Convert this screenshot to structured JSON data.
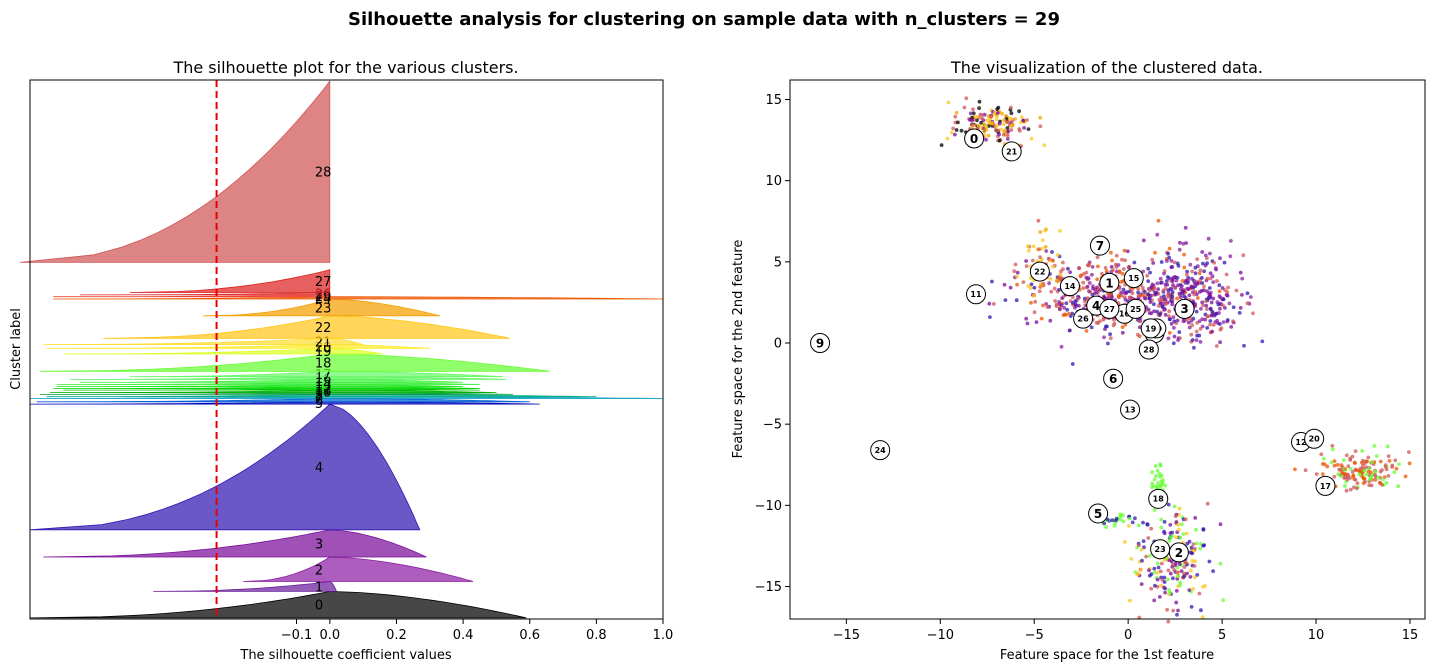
{
  "figure": {
    "suptitle": "Silhouette analysis for clustering on sample data with n_clusters = 29"
  },
  "chart_data": [
    {
      "type": "area",
      "title": "The silhouette plot for the various clusters.",
      "xlabel": "The silhouette coefficient values",
      "ylabel": "Cluster label",
      "xlim": [
        -0.9,
        1.0
      ],
      "xticks": [
        "−0.1",
        "0.0",
        "0.2",
        "0.4",
        "0.6",
        "0.8",
        "1.0"
      ],
      "xtick_values": [
        -0.1,
        0.0,
        0.2,
        0.4,
        0.6,
        0.8,
        1.0
      ],
      "average_silhouette": -0.34,
      "clusters": [
        {
          "label": "0",
          "y_range": [
            0.5,
            12.3
          ],
          "max": 0.59,
          "min": -0.9,
          "color": "#000000"
        },
        {
          "label": "1",
          "y_range": [
            12.3,
            16.7
          ],
          "max": 0.02,
          "min": -0.53,
          "color": "#6a1d9a"
        },
        {
          "label": "2",
          "y_range": [
            16.7,
            27.6
          ],
          "max": 0.43,
          "min": -0.26,
          "color": "#8e1fa3"
        },
        {
          "label": "3",
          "y_range": [
            27.6,
            39.7
          ],
          "max": 0.29,
          "min": -0.86,
          "color": "#7b0e9a"
        },
        {
          "label": "4",
          "y_range": [
            39.7,
            95.7
          ],
          "max": 0.27,
          "min": -0.9,
          "color": "#3018b0"
        },
        {
          "label": "5",
          "y_range": [
            95.7,
            96.7
          ],
          "max": 0.63,
          "min": -0.9,
          "color": "#0000bb"
        },
        {
          "label": "6",
          "y_range": [
            96.7,
            98.2
          ],
          "max": 0.6,
          "min": -0.88,
          "color": "#005fd5"
        },
        {
          "label": "7",
          "y_range": [
            98.2,
            99.0
          ],
          "max": 1.0,
          "min": -0.9,
          "color": "#009fbf"
        },
        {
          "label": "8",
          "y_range": [
            99.0,
            100.0
          ],
          "max": 0.8,
          "min": -0.85,
          "color": "#00aa88"
        },
        {
          "label": "9",
          "y_range": [
            100.0,
            100.8
          ],
          "max": 0.55,
          "min": -0.87,
          "color": "#009b3d"
        },
        {
          "label": "10",
          "y_range": [
            100.8,
            101.9
          ],
          "max": 0.5,
          "min": -0.84,
          "color": "#00b000"
        },
        {
          "label": "11",
          "y_range": [
            101.9,
            102.6
          ],
          "max": 0.45,
          "min": -0.8,
          "color": "#00c800"
        },
        {
          "label": "12",
          "y_range": [
            102.6,
            103.5
          ],
          "max": 0.45,
          "min": -0.83,
          "color": "#00d800"
        },
        {
          "label": "13",
          "y_range": [
            103.5,
            104.4
          ],
          "max": 0.4,
          "min": -0.82,
          "color": "#22e622"
        },
        {
          "label": "14",
          "y_range": [
            104.4,
            105.4
          ],
          "max": 0.45,
          "min": -0.82,
          "color": "#33ee33"
        },
        {
          "label": "15",
          "y_range": [
            105.4,
            106.7
          ],
          "max": 0.4,
          "min": -0.75,
          "color": "#44f244"
        },
        {
          "label": "16",
          "y_range": [
            106.7,
            107.9
          ],
          "max": 0.53,
          "min": -0.78,
          "color": "#55f455"
        },
        {
          "label": "17",
          "y_range": [
            107.9,
            110.3
          ],
          "max": 0.52,
          "min": -0.6,
          "color": "#66f866"
        },
        {
          "label": "18",
          "y_range": [
            110.3,
            118.0
          ],
          "max": 0.66,
          "min": -0.87,
          "color": "#66ff33"
        },
        {
          "label": "19",
          "y_range": [
            118.0,
            120.5
          ],
          "max": 0.16,
          "min": -0.8,
          "color": "#ddff22"
        },
        {
          "label": "20",
          "y_range": [
            120.5,
            122.2
          ],
          "max": 0.3,
          "min": -0.85,
          "color": "#ffea22"
        },
        {
          "label": "21",
          "y_range": [
            122.2,
            125.0
          ],
          "max": 0.1,
          "min": -0.86,
          "color": "#ffdd33"
        },
        {
          "label": "22",
          "y_range": [
            125.0,
            135.0
          ],
          "max": 0.54,
          "min": -0.68,
          "color": "#ffc619"
        },
        {
          "label": "23",
          "y_range": [
            135.0,
            142.5
          ],
          "max": 0.33,
          "min": -0.38,
          "color": "#f5a000"
        },
        {
          "label": "24",
          "y_range": [
            142.5,
            143.5
          ],
          "max": 1.0,
          "min": -0.83,
          "color": "#ee5500"
        },
        {
          "label": "25",
          "y_range": [
            143.5,
            144.3
          ],
          "max": 0.0,
          "min": -0.83,
          "color": "#ee4433"
        },
        {
          "label": "26",
          "y_range": [
            144.3,
            145.4
          ],
          "max": 0.0,
          "min": -0.75,
          "color": "#dd3333"
        },
        {
          "label": "27",
          "y_range": [
            145.4,
            155.5
          ],
          "max": 0.0,
          "min": -0.6,
          "color": "#dd2222"
        },
        {
          "label": "28",
          "y_range": [
            158.8,
            239.5
          ],
          "max": 0.0,
          "min": -0.93,
          "color": "#d05555"
        }
      ],
      "ylim": [
        0,
        240
      ]
    },
    {
      "type": "scatter",
      "title": "The visualization of the clustered data.",
      "xlabel": "Feature space for the 1st feature",
      "ylabel": "Feature space for the 2nd feature",
      "xlim": [
        -18,
        15.8
      ],
      "ylim": [
        -17,
        16.2
      ],
      "xticks": [
        "−15",
        "−10",
        "−5",
        "0",
        "5",
        "10",
        "15"
      ],
      "xtick_values": [
        -15,
        -10,
        -5,
        0,
        5,
        10,
        15
      ],
      "yticks": [
        "−15",
        "−10",
        "−5",
        "0",
        "5",
        "10",
        "15"
      ],
      "ytick_values": [
        -15,
        -10,
        -5,
        0,
        5,
        10,
        15
      ],
      "centers": [
        {
          "label": "0",
          "x": -8.2,
          "y": 12.6
        },
        {
          "label": "1",
          "x": -1.0,
          "y": 3.7
        },
        {
          "label": "2",
          "x": 2.7,
          "y": -12.9
        },
        {
          "label": "3",
          "x": 3.0,
          "y": 2.1
        },
        {
          "label": "4",
          "x": -1.7,
          "y": 2.3
        },
        {
          "label": "5",
          "x": -1.6,
          "y": -10.5
        },
        {
          "label": "6",
          "x": -0.8,
          "y": -2.2
        },
        {
          "label": "7",
          "x": -1.5,
          "y": 6.0
        },
        {
          "label": "8",
          "x": 1.4,
          "y": 0.6
        },
        {
          "label": "9",
          "x": -16.4,
          "y": 0.0
        },
        {
          "label": "10",
          "x": 1.5,
          "y": 0.9
        },
        {
          "label": "11",
          "x": -8.1,
          "y": 3.0
        },
        {
          "label": "12",
          "x": 9.2,
          "y": -6.1
        },
        {
          "label": "13",
          "x": 0.1,
          "y": -4.1
        },
        {
          "label": "14",
          "x": -3.1,
          "y": 3.5
        },
        {
          "label": "15",
          "x": 0.3,
          "y": 4.0
        },
        {
          "label": "16",
          "x": -0.2,
          "y": 1.8
        },
        {
          "label": "17",
          "x": 10.5,
          "y": -8.8
        },
        {
          "label": "18",
          "x": 1.6,
          "y": -9.6
        },
        {
          "label": "19",
          "x": 1.2,
          "y": 0.9
        },
        {
          "label": "20",
          "x": 9.9,
          "y": -5.9
        },
        {
          "label": "21",
          "x": -6.2,
          "y": 11.8
        },
        {
          "label": "22",
          "x": -4.7,
          "y": 4.4
        },
        {
          "label": "23",
          "x": 1.7,
          "y": -12.7
        },
        {
          "label": "24",
          "x": -13.2,
          "y": -6.6
        },
        {
          "label": "25",
          "x": 0.4,
          "y": 2.1
        },
        {
          "label": "26",
          "x": -2.4,
          "y": 1.5
        },
        {
          "label": "27",
          "x": -1.0,
          "y": 2.1
        },
        {
          "label": "28",
          "x": 1.1,
          "y": -0.4
        }
      ]
    }
  ]
}
